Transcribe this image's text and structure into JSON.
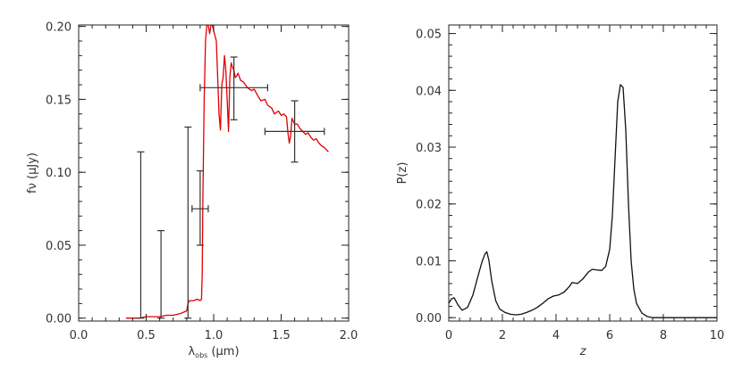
{
  "chart_data": [
    {
      "type": "line",
      "title": "",
      "xlabel": "λobs (μm)",
      "xlabel_main": "λ",
      "xlabel_sub": "obs",
      "xlabel_unit": " (μm)",
      "ylabel": "fν (μJy)",
      "xlim": [
        0.0,
        2.0
      ],
      "ylim": [
        -0.002,
        0.201
      ],
      "x_ticks": [
        0.0,
        0.5,
        1.0,
        1.5,
        2.0
      ],
      "x_tick_labels": [
        "0.0",
        "0.5",
        "1.0",
        "1.5",
        "2.0"
      ],
      "y_ticks": [
        0.0,
        0.05,
        0.1,
        0.15,
        0.2
      ],
      "y_tick_labels": [
        "0.00",
        "0.05",
        "0.10",
        "0.15",
        "0.20"
      ],
      "grid": false,
      "series": [
        {
          "kind": "model-sed",
          "color": "#e00000",
          "x": [
            0.35,
            0.4,
            0.45,
            0.5,
            0.55,
            0.6,
            0.65,
            0.7,
            0.75,
            0.8,
            0.81,
            0.82,
            0.85,
            0.88,
            0.9,
            0.91,
            0.915,
            0.92,
            0.93,
            0.94,
            0.95,
            0.96,
            0.97,
            0.98,
            0.99,
            1.0,
            1.02,
            1.04,
            1.05,
            1.06,
            1.07,
            1.08,
            1.09,
            1.1,
            1.11,
            1.12,
            1.13,
            1.14,
            1.15,
            1.16,
            1.17,
            1.18,
            1.2,
            1.22,
            1.25,
            1.28,
            1.3,
            1.33,
            1.35,
            1.38,
            1.4,
            1.43,
            1.45,
            1.48,
            1.5,
            1.52,
            1.54,
            1.55,
            1.56,
            1.57,
            1.58,
            1.6,
            1.62,
            1.64,
            1.66,
            1.68,
            1.7,
            1.72,
            1.74,
            1.76,
            1.78,
            1.8,
            1.82,
            1.85
          ],
          "y": [
            0.0,
            0.0,
            0.0,
            0.001,
            0.001,
            0.001,
            0.002,
            0.002,
            0.003,
            0.005,
            0.01,
            0.012,
            0.012,
            0.013,
            0.012,
            0.013,
            0.03,
            0.08,
            0.15,
            0.19,
            0.201,
            0.201,
            0.195,
            0.201,
            0.201,
            0.197,
            0.19,
            0.14,
            0.129,
            0.16,
            0.165,
            0.18,
            0.17,
            0.15,
            0.128,
            0.165,
            0.175,
            0.172,
            0.17,
            0.165,
            0.166,
            0.168,
            0.163,
            0.162,
            0.158,
            0.156,
            0.157,
            0.152,
            0.149,
            0.15,
            0.146,
            0.144,
            0.14,
            0.142,
            0.139,
            0.14,
            0.138,
            0.127,
            0.12,
            0.125,
            0.137,
            0.133,
            0.133,
            0.13,
            0.128,
            0.126,
            0.127,
            0.124,
            0.122,
            0.123,
            0.12,
            0.118,
            0.117,
            0.114
          ]
        },
        {
          "kind": "photometry-errorbars",
          "color": "#333333",
          "points": [
            {
              "x": 0.46,
              "y": 0.0,
              "yerr_low": 0.0,
              "yerr_high": 0.114,
              "xerr": 0.0
            },
            {
              "x": 0.61,
              "y": 0.0,
              "yerr_low": 0.0,
              "yerr_high": 0.06,
              "xerr": 0.0
            },
            {
              "x": 0.81,
              "y": 0.0,
              "yerr_low": 0.0,
              "yerr_high": 0.131,
              "xerr": 0.0
            },
            {
              "x": 0.9,
              "y": 0.075,
              "yerr_low": 0.025,
              "yerr_high": 0.026,
              "xerr": 0.06
            },
            {
              "x": 1.15,
              "y": 0.158,
              "yerr_low": 0.022,
              "yerr_high": 0.021,
              "xerr": 0.25
            },
            {
              "x": 1.6,
              "y": 0.128,
              "yerr_low": 0.021,
              "yerr_high": 0.021,
              "xerr": 0.22
            }
          ]
        }
      ]
    },
    {
      "type": "line",
      "title": "",
      "xlabel": "z",
      "ylabel": "P(z)",
      "xlim": [
        0,
        10
      ],
      "ylim": [
        -0.0006,
        0.0515
      ],
      "x_ticks": [
        0,
        2,
        4,
        6,
        8,
        10
      ],
      "x_tick_labels": [
        "0",
        "2",
        "4",
        "6",
        "8",
        "10"
      ],
      "y_ticks": [
        0.0,
        0.01,
        0.02,
        0.03,
        0.04,
        0.05
      ],
      "y_tick_labels": [
        "0.00",
        "0.01",
        "0.02",
        "0.03",
        "0.04",
        "0.05"
      ],
      "grid": false,
      "series": [
        {
          "kind": "probability-distribution",
          "color": "#111111",
          "x": [
            0.0,
            0.1,
            0.2,
            0.35,
            0.5,
            0.7,
            0.9,
            1.1,
            1.25,
            1.35,
            1.42,
            1.5,
            1.6,
            1.75,
            1.9,
            2.1,
            2.3,
            2.5,
            2.7,
            2.9,
            3.1,
            3.3,
            3.5,
            3.7,
            3.9,
            4.1,
            4.3,
            4.5,
            4.6,
            4.8,
            5.0,
            5.2,
            5.35,
            5.5,
            5.7,
            5.85,
            6.0,
            6.1,
            6.2,
            6.3,
            6.4,
            6.5,
            6.6,
            6.7,
            6.8,
            6.9,
            7.0,
            7.2,
            7.4,
            7.6,
            8.0,
            9.0,
            10.0
          ],
          "y": [
            0.0025,
            0.0033,
            0.0035,
            0.0022,
            0.0013,
            0.0018,
            0.004,
            0.0075,
            0.01,
            0.0112,
            0.0116,
            0.01,
            0.0065,
            0.003,
            0.0015,
            0.0009,
            0.0006,
            0.0005,
            0.0006,
            0.0009,
            0.0013,
            0.0018,
            0.0025,
            0.0033,
            0.0038,
            0.004,
            0.0045,
            0.0055,
            0.0062,
            0.006,
            0.0068,
            0.008,
            0.0085,
            0.0084,
            0.0083,
            0.009,
            0.012,
            0.018,
            0.028,
            0.038,
            0.041,
            0.0405,
            0.033,
            0.02,
            0.01,
            0.005,
            0.0025,
            0.0008,
            0.0002,
            0.0,
            0.0,
            0.0,
            0.0
          ]
        }
      ]
    }
  ]
}
